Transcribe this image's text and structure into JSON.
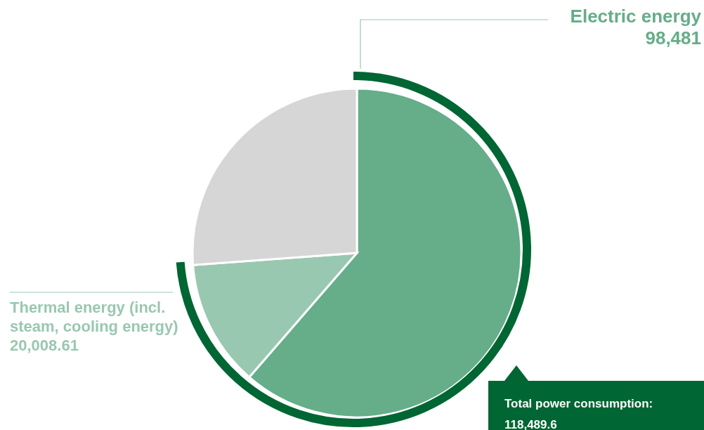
{
  "chart_data": {
    "type": "pie",
    "categories": [
      "Electric energy",
      "Thermal energy (incl. steam, cooling energy)",
      null
    ],
    "values": [
      98481,
      20008.61,
      42000
    ],
    "colors": [
      "#66ad8a",
      "#99c8b0",
      "#d6d6d6"
    ],
    "value_labels": [
      "98,481",
      "20,008.61",
      null
    ],
    "annotations": [
      "Total power consumption: 118,489.6"
    ]
  }
}
